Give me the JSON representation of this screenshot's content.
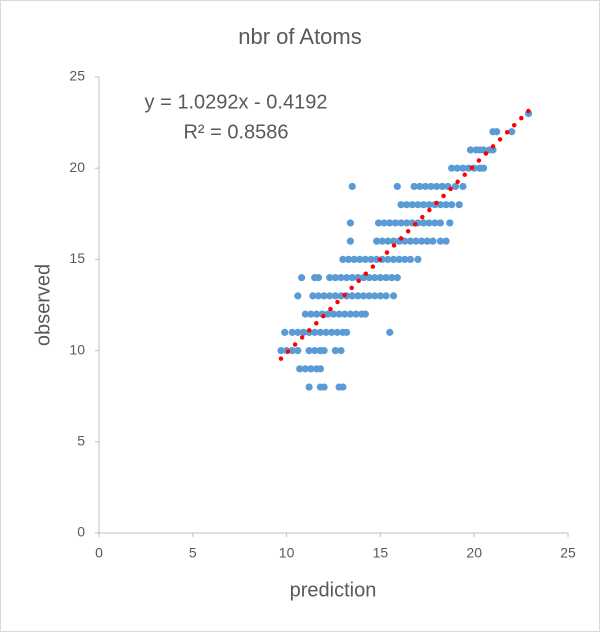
{
  "chart_data": {
    "type": "scatter",
    "title": "nbr of Atoms",
    "x_label": "prediction",
    "y_label": "observed",
    "annotations": [
      "y = 1.0292x - 0.4192",
      "R² = 0.8586"
    ],
    "xlim": [
      0,
      25
    ],
    "ylim": [
      0,
      25
    ],
    "xticks": [
      0,
      5,
      10,
      15,
      20,
      25
    ],
    "yticks": [
      0,
      5,
      10,
      15,
      20,
      25
    ],
    "grid": false,
    "series": [
      {
        "color": "#5b9bd5",
        "x": [
          22.9,
          21.0,
          21.2,
          22.0,
          19.8,
          20.1,
          20.3,
          20.5,
          20.8,
          21.0,
          18.8,
          19.1,
          19.4,
          19.7,
          20.0,
          20.3,
          20.5,
          13.5,
          15.9,
          16.8,
          17.1,
          17.4,
          17.7,
          18.0,
          18.3,
          18.6,
          19.0,
          19.4,
          16.1,
          16.4,
          16.7,
          17.0,
          17.3,
          17.6,
          17.9,
          18.2,
          18.5,
          18.8,
          19.2,
          13.4,
          14.9,
          15.2,
          15.5,
          15.8,
          16.1,
          16.4,
          16.7,
          17.0,
          17.3,
          17.6,
          17.9,
          18.2,
          18.7,
          13.4,
          14.8,
          15.1,
          15.4,
          15.7,
          16.0,
          16.3,
          16.6,
          16.9,
          17.2,
          17.5,
          17.8,
          18.2,
          18.5,
          13.0,
          13.3,
          13.6,
          13.9,
          14.2,
          14.5,
          14.8,
          15.1,
          15.4,
          15.7,
          16.0,
          16.3,
          16.6,
          17.0,
          10.8,
          11.5,
          11.7,
          12.3,
          12.6,
          12.9,
          13.2,
          13.5,
          13.8,
          14.1,
          14.4,
          14.7,
          15.0,
          15.3,
          15.6,
          15.9,
          10.6,
          11.4,
          11.7,
          12.0,
          12.3,
          12.6,
          12.9,
          13.2,
          13.5,
          13.8,
          14.1,
          14.4,
          14.7,
          15.0,
          15.3,
          15.7,
          11.0,
          11.3,
          11.6,
          11.9,
          12.2,
          12.5,
          12.8,
          13.1,
          13.4,
          13.7,
          14.0,
          14.2,
          9.9,
          10.3,
          10.6,
          10.9,
          11.2,
          11.5,
          11.8,
          12.1,
          12.4,
          12.7,
          13.0,
          13.2,
          15.5,
          9.7,
          10.0,
          10.3,
          10.6,
          11.2,
          11.5,
          11.8,
          12.0,
          12.6,
          12.9,
          10.7,
          11.0,
          11.3,
          11.6,
          11.8,
          11.2,
          11.8,
          12.0,
          12.8,
          13.0
        ],
        "y": [
          23,
          22,
          22,
          22,
          21,
          21,
          21,
          21,
          21,
          21,
          20,
          20,
          20,
          20,
          20,
          20,
          20,
          19,
          19,
          19,
          19,
          19,
          19,
          19,
          19,
          19,
          19,
          19,
          18,
          18,
          18,
          18,
          18,
          18,
          18,
          18,
          18,
          18,
          18,
          17,
          17,
          17,
          17,
          17,
          17,
          17,
          17,
          17,
          17,
          17,
          17,
          17,
          17,
          16,
          16,
          16,
          16,
          16,
          16,
          16,
          16,
          16,
          16,
          16,
          16,
          16,
          16,
          15,
          15,
          15,
          15,
          15,
          15,
          15,
          15,
          15,
          15,
          15,
          15,
          15,
          15,
          14,
          14,
          14,
          14,
          14,
          14,
          14,
          14,
          14,
          14,
          14,
          14,
          14,
          14,
          14,
          14,
          13,
          13,
          13,
          13,
          13,
          13,
          13,
          13,
          13,
          13,
          13,
          13,
          13,
          13,
          13,
          13,
          12,
          12,
          12,
          12,
          12,
          12,
          12,
          12,
          12,
          12,
          12,
          12,
          11,
          11,
          11,
          11,
          11,
          11,
          11,
          11,
          11,
          11,
          11,
          11,
          11,
          10,
          10,
          10,
          10,
          10,
          10,
          10,
          10,
          10,
          10,
          9,
          9,
          9,
          9,
          9,
          8,
          8,
          8,
          8,
          8
        ]
      }
    ],
    "trendline": {
      "color": "#ff0000",
      "x": [
        9.7,
        23.0
      ],
      "y": [
        9.56,
        23.25
      ]
    }
  }
}
